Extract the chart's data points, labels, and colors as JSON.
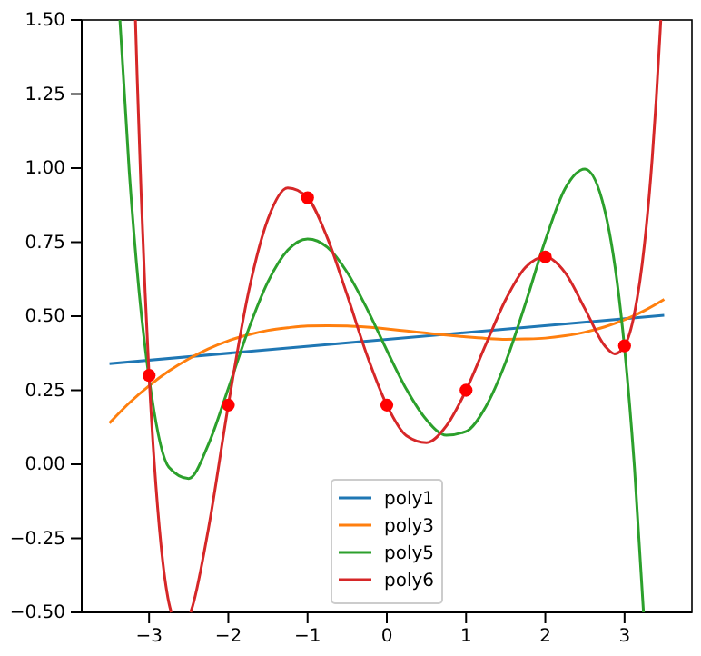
{
  "chart_data": {
    "type": "line",
    "xlim": [
      -3.85,
      3.85
    ],
    "ylim": [
      -0.5,
      1.5
    ],
    "xticks": [
      {
        "value": -3,
        "label": "−3"
      },
      {
        "value": -2,
        "label": "−2"
      },
      {
        "value": -1,
        "label": "−1"
      },
      0,
      1,
      2,
      3
    ],
    "yticks": [
      {
        "value": -0.5,
        "label": "−0.50"
      },
      {
        "value": -0.25,
        "label": "−0.25"
      },
      {
        "value": 0,
        "label": "0.00"
      },
      {
        "value": 0.25,
        "label": "0.25"
      },
      {
        "value": 0.5,
        "label": "0.50"
      },
      {
        "value": 0.75,
        "label": "0.75"
      },
      {
        "value": 1,
        "label": "1.00"
      },
      {
        "value": 1.25,
        "label": "1.25"
      },
      {
        "value": 1.5,
        "label": "1.50"
      }
    ],
    "grid": false,
    "legend": "bottom",
    "series": [
      {
        "name": "poly1",
        "color": "#1f77b4",
        "x": [
          -3.5,
          3.5
        ],
        "values": [
          0.34,
          0.503
        ]
      },
      {
        "name": "poly3",
        "color": "#ff7f0e",
        "x": [
          -3.5,
          -3.25,
          -3,
          -2.75,
          -2.5,
          -2.25,
          -2,
          -1.75,
          -1.5,
          -1.25,
          -1,
          -0.75,
          -0.5,
          -0.25,
          0,
          0.25,
          0.5,
          0.75,
          1,
          1.25,
          1.5,
          1.75,
          2,
          2.25,
          2.5,
          2.75,
          3,
          3.25,
          3.5
        ],
        "values": [
          0.139,
          0.207,
          0.265,
          0.315,
          0.356,
          0.39,
          0.417,
          0.437,
          0.452,
          0.461,
          0.467,
          0.468,
          0.467,
          0.463,
          0.457,
          0.45,
          0.443,
          0.436,
          0.43,
          0.425,
          0.422,
          0.423,
          0.426,
          0.434,
          0.446,
          0.464,
          0.488,
          0.519,
          0.557
        ]
      },
      {
        "name": "poly5",
        "color": "#2ca02c",
        "x": [
          -3.368,
          -3.25,
          -3.125,
          -3,
          -2.75,
          -2.5,
          -2.25,
          -2,
          -1.75,
          -1.5,
          -1.25,
          -1,
          -0.75,
          -0.5,
          -0.25,
          0,
          0.25,
          0.5,
          0.75,
          1,
          1.25,
          1.5,
          1.75,
          2,
          2.25,
          2.5,
          2.75,
          3,
          3.125,
          3.239
        ],
        "values": [
          1.5,
          0.988,
          0.58,
          0.291,
          -0.01,
          -0.048,
          0.068,
          0.256,
          0.452,
          0.616,
          0.723,
          0.761,
          0.733,
          0.648,
          0.525,
          0.385,
          0.252,
          0.15,
          0.098,
          0.111,
          0.195,
          0.345,
          0.543,
          0.756,
          0.931,
          0.997,
          0.858,
          0.391,
          -0.011,
          -0.5
        ]
      },
      {
        "name": "poly6",
        "color": "#d62728",
        "x": [
          -3.172,
          -3.15,
          -3.1,
          -3.05,
          -3,
          -2.85,
          -2.75,
          -2.72,
          -2.6,
          -2.476,
          -2.45,
          -2.25,
          -2,
          -1.75,
          -1.5,
          -1.25,
          -1,
          -0.75,
          -0.5,
          -0.25,
          0,
          0.25,
          0.5,
          0.75,
          1,
          1.25,
          1.5,
          1.75,
          2,
          2.25,
          2.5,
          2.75,
          2.875,
          3,
          3.125,
          3.25,
          3.35,
          3.4,
          3.45,
          3.457
        ],
        "values": [
          1.5,
          1.305,
          0.914,
          0.581,
          0.3,
          -0.271,
          -0.468,
          -0.5,
          null,
          -0.5,
          -0.478,
          -0.216,
          0.2,
          0.575,
          0.828,
          0.933,
          0.9,
          0.764,
          0.571,
          0.368,
          0.2,
          0.096,
          0.073,
          0.129,
          0.25,
          0.405,
          0.556,
          0.665,
          0.7,
          0.647,
          0.525,
          0.4,
          0.373,
          0.4,
          0.51,
          0.74,
          1.038,
          1.234,
          1.466,
          1.5
        ]
      },
      {
        "type": "scatter",
        "color": "#ff0000",
        "marker": "circle",
        "x": [
          -3,
          -2,
          -1,
          0,
          1,
          2,
          3
        ],
        "values": [
          0.3,
          0.2,
          0.9,
          0.2,
          0.25,
          0.7,
          0.4
        ]
      }
    ]
  }
}
